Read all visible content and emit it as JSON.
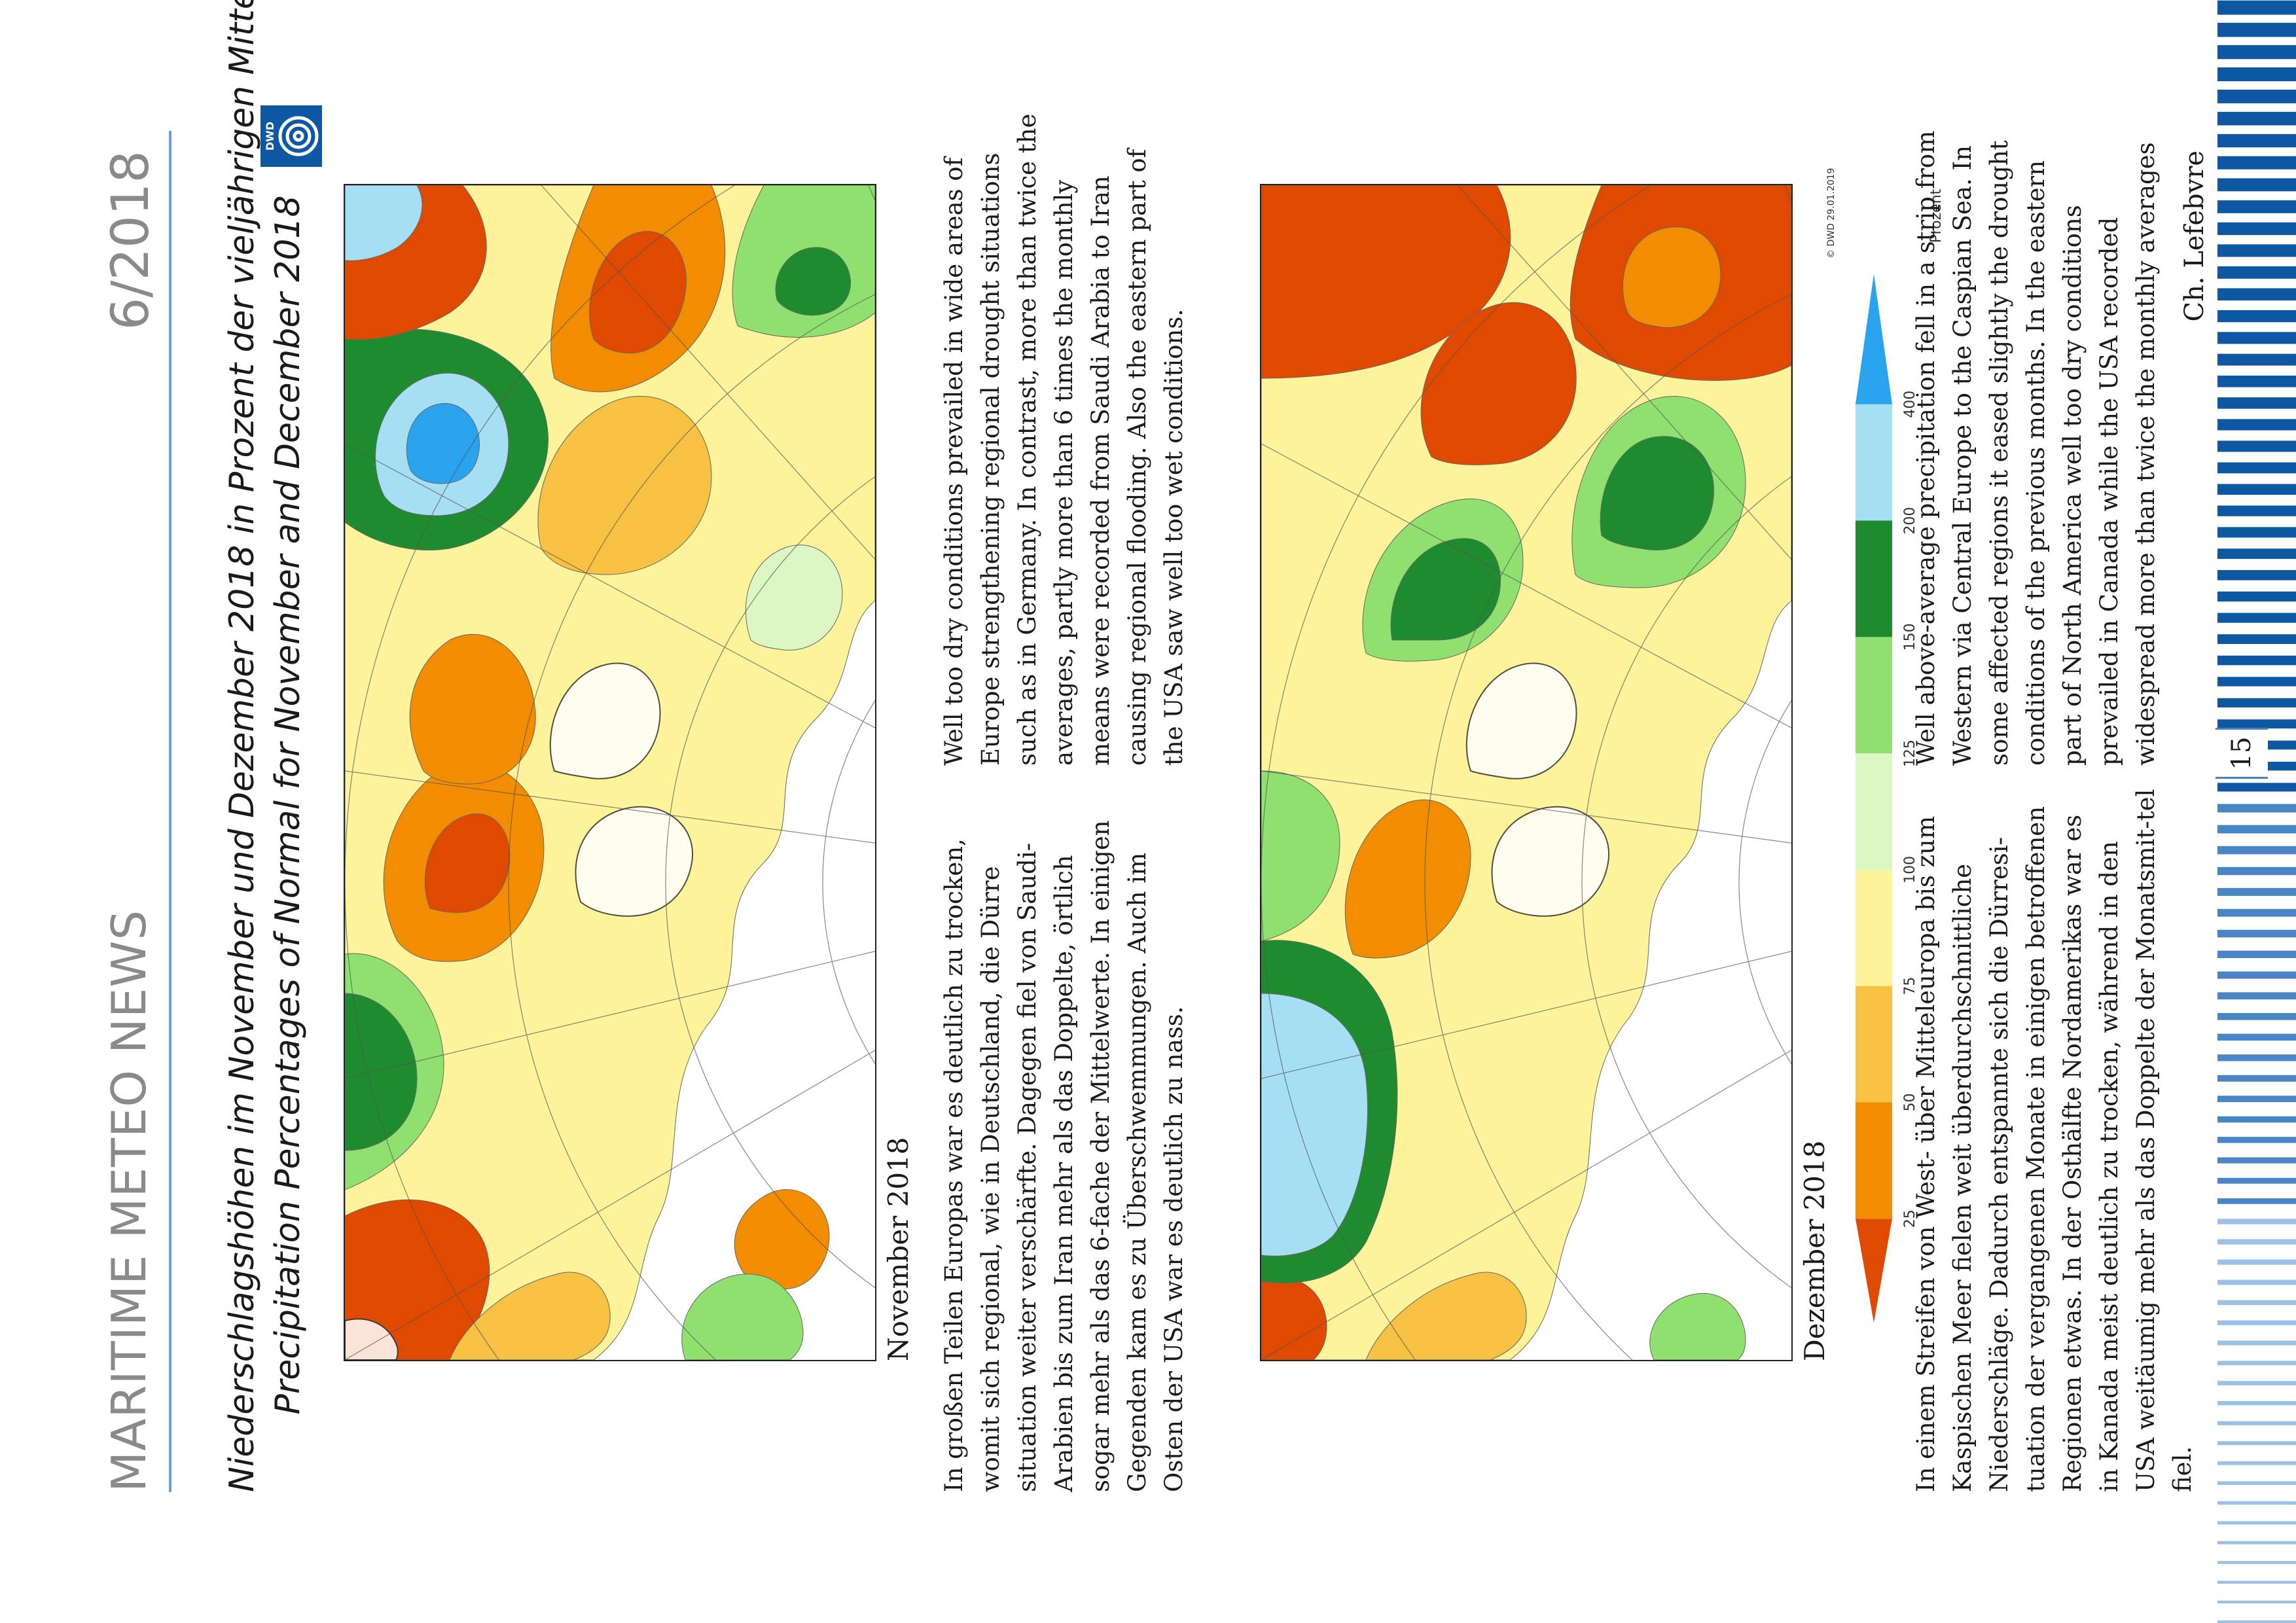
{
  "header": {
    "magazine": "MARITIME METEO NEWS",
    "issue": "6/2018"
  },
  "title": {
    "german": "Niederschlagshöhen im November und Dezember 2018 in Prozent der vieljährigen Mittel",
    "english": "Precipitation Percentages of Normal for November and December 2018"
  },
  "logo": {
    "text": "DWD",
    "icon": "dwd-spiral-icon"
  },
  "maps": [
    {
      "caption": "November 2018"
    },
    {
      "caption": "Dezember 2018",
      "copyright": "© DWD 29.01.2019"
    }
  ],
  "november_text": {
    "german": "In großen Teilen Europas war es deutlich zu trocken, womit sich regional, wie in Deutschland, die Dürre situation weiter verschärfte. Dagegen fiel von Saudi-Arabien bis zum Iran mehr als das Doppelte, örtlich sogar mehr als das 6-fache der Mittelwerte. In einigen Gegenden kam es zu Überschwemmungen. Auch im Osten der USA war es deutlich zu nass.",
    "english": "Well too dry conditions prevailed in wide areas of Europe strengthening regional drought situations such as in Germany. In contrast, more than twice the averages, partly more than 6 times the monthly means were recorded from Saudi Arabia to Iran causing regional flooding. Also the eastern part of the USA saw well too wet conditions."
  },
  "december_text": {
    "german": "In einem Streifen von West- über Mitteleuropa bis zum Kaspischen Meer fielen weit überdurchschnittliche Niederschläge. Dadurch entspannte sich die Dürresi-tuation der vergangenen Monate in einigen betroffenen Regionen etwas. In der Osthälfte Nordamerikas war es in Kanada meist deutlich zu trocken, während in den USA weitäumig mehr als das Doppelte der Monatsmit-tel fiel.",
    "english": "Well above-average precipitation fell in a strip from Western via Central Europe to the Caspian Sea. In some affected regions it eased slightly the drought conditions of the previous months. In the eastern part of North America well too dry conditions prevailed in Canada while the USA recorded widespread more than twice the monthly averages"
  },
  "author": "Ch. Lefebvre",
  "page_number": "15",
  "legend": {
    "unit": "Prozent",
    "ticks": [
      "25",
      "50",
      "75",
      "100",
      "125",
      "150",
      "200",
      "400"
    ],
    "colors": [
      "#e04a00",
      "#f28c00",
      "#f7c244",
      "#fdf39a",
      "#dcf6c4",
      "#90e070",
      "#1e8c2e",
      "#a6def4",
      "#2aa3ee"
    ]
  },
  "colors": {
    "accent": "#0d57a3",
    "header_gray": "#8a8a8a",
    "rule": "#6a9fd4"
  }
}
